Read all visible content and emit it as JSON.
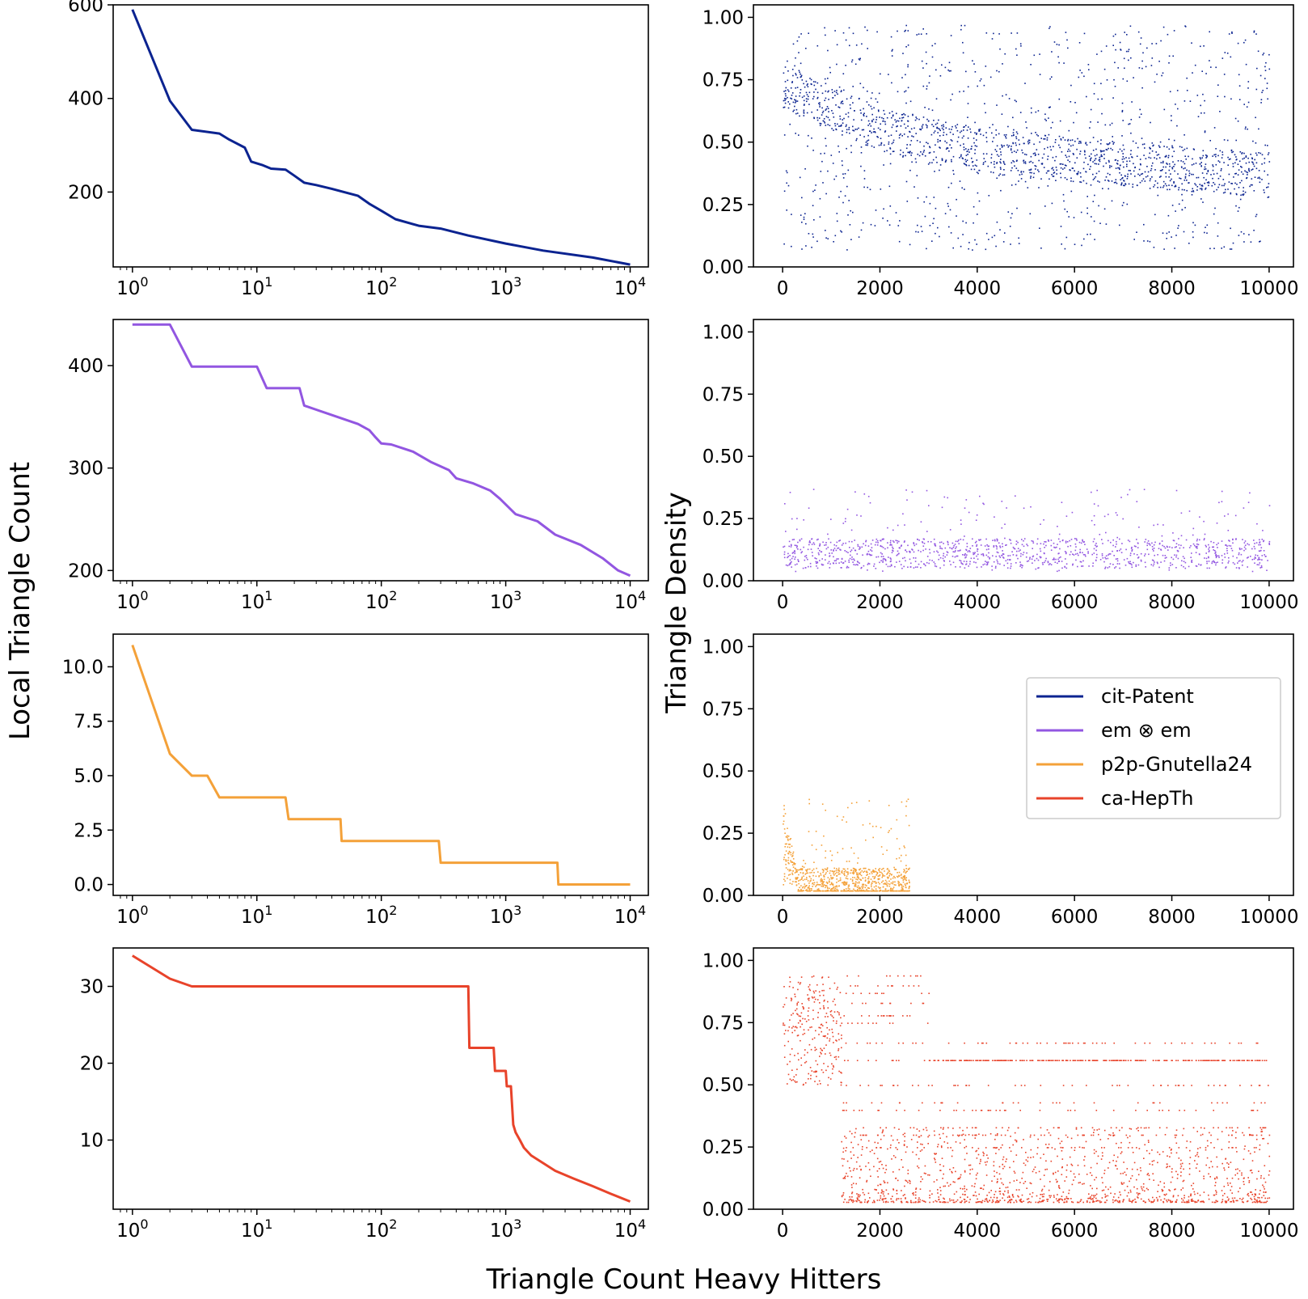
{
  "figure": {
    "xlabel": "Triangle Count Heavy Hitters",
    "ylabel_left": "Local Triangle Count",
    "ylabel_right": "Triangle Density"
  },
  "colors": {
    "cit-Patent": "#0b2390",
    "em ⊗ em": "#9256e1",
    "p2p-Gnutella24": "#f4a139",
    "ca-HepTh": "#e8432a"
  },
  "legend": {
    "placement": "right, third row density panel",
    "entries": [
      "cit-Patent",
      "em ⊗ em",
      "p2p-Gnutella24",
      "ca-HepTh"
    ]
  },
  "chart_data": [
    {
      "type": "line",
      "dataset": "cit-Patent",
      "xscale": "log",
      "xlim": [
        0.7,
        14000
      ],
      "ylim": [
        40,
        600
      ],
      "xticks": [
        1,
        10,
        100,
        1000,
        10000
      ],
      "yticks": [
        200,
        400,
        600
      ],
      "x": [
        1,
        2,
        3,
        5,
        6,
        8,
        9,
        11,
        13,
        17,
        20,
        24,
        30,
        40,
        65,
        80,
        100,
        130,
        200,
        300,
        500,
        1000,
        2000,
        5000,
        10000
      ],
      "y": [
        590,
        395,
        333,
        325,
        312,
        295,
        265,
        258,
        250,
        248,
        235,
        220,
        215,
        207,
        192,
        175,
        160,
        142,
        128,
        122,
        107,
        90,
        75,
        60,
        45
      ]
    },
    {
      "type": "scatter",
      "dataset": "cit-Patent",
      "xlim": [
        -600,
        10500
      ],
      "ylim": [
        0,
        1.05
      ],
      "xticks": [
        0,
        2000,
        4000,
        6000,
        8000,
        10000
      ],
      "yticks": [
        0.0,
        0.25,
        0.5,
        0.75,
        1.0
      ],
      "trend_x": [
        0,
        500,
        2000,
        4000,
        6000,
        8000,
        10000
      ],
      "trend_y": [
        0.72,
        0.68,
        0.55,
        0.47,
        0.43,
        0.4,
        0.37
      ],
      "x_range": [
        0,
        10000
      ],
      "y_range": [
        0.07,
        0.97
      ],
      "points": 2000
    },
    {
      "type": "line",
      "dataset": "em ⊗ em",
      "xscale": "log",
      "xlim": [
        0.7,
        14000
      ],
      "ylim": [
        190,
        445
      ],
      "xticks": [
        1,
        10,
        100,
        1000,
        10000
      ],
      "yticks": [
        200,
        300,
        400
      ],
      "x": [
        1,
        2,
        3,
        10,
        12,
        22,
        24,
        30,
        65,
        80,
        90,
        100,
        120,
        180,
        250,
        350,
        400,
        550,
        750,
        900,
        1200,
        1800,
        2500,
        4000,
        6000,
        8000,
        10000
      ],
      "y": [
        440,
        440,
        399,
        399,
        378,
        378,
        361,
        357,
        343,
        337,
        330,
        324,
        323,
        316,
        306,
        298,
        290,
        285,
        278,
        270,
        255,
        248,
        235,
        225,
        212,
        200,
        195
      ]
    },
    {
      "type": "scatter",
      "dataset": "em ⊗ em",
      "xlim": [
        -600,
        10500
      ],
      "ylim": [
        0,
        1.05
      ],
      "xticks": [
        0,
        2000,
        4000,
        6000,
        8000,
        10000
      ],
      "yticks": [
        0.0,
        0.25,
        0.5,
        0.75,
        1.0
      ],
      "x_range": [
        0,
        10000
      ],
      "y_range": [
        0.03,
        0.37
      ],
      "y_center": 0.1,
      "points": 1200
    },
    {
      "type": "line",
      "dataset": "p2p-Gnutella24",
      "xscale": "log",
      "xlim": [
        0.7,
        14000
      ],
      "ylim": [
        -0.5,
        11.5
      ],
      "xticks": [
        1,
        10,
        100,
        1000,
        10000
      ],
      "yticks": [
        0.0,
        2.5,
        5.0,
        7.5,
        10.0
      ],
      "x": [
        1,
        2,
        3,
        4,
        5,
        17,
        18,
        47,
        48,
        290,
        300,
        2600,
        2650,
        10000
      ],
      "y": [
        11,
        6,
        5,
        5,
        4,
        4,
        3,
        3,
        2,
        2,
        1,
        1,
        0,
        0
      ]
    },
    {
      "type": "scatter",
      "dataset": "p2p-Gnutella24",
      "xlim": [
        -600,
        10500
      ],
      "ylim": [
        0,
        1.05
      ],
      "xticks": [
        0,
        2000,
        4000,
        6000,
        8000,
        10000
      ],
      "yticks": [
        0.0,
        0.25,
        0.5,
        0.75,
        1.0
      ],
      "x_range": [
        0,
        2600
      ],
      "y_range": [
        0.02,
        0.4
      ],
      "y_center": 0.04,
      "points": 900
    },
    {
      "type": "line",
      "dataset": "ca-HepTh",
      "xscale": "log",
      "xlim": [
        0.7,
        14000
      ],
      "ylim": [
        1,
        35
      ],
      "xticks": [
        1,
        10,
        100,
        1000,
        10000
      ],
      "yticks": [
        10,
        20,
        30
      ],
      "x": [
        1,
        2,
        3,
        500,
        510,
        800,
        820,
        1000,
        1020,
        1100,
        1150,
        1200,
        1300,
        1400,
        1600,
        2000,
        2500,
        3500,
        5000,
        7000,
        10000
      ],
      "y": [
        34,
        31,
        30,
        30,
        22,
        22,
        19,
        19,
        17,
        17,
        12,
        11,
        10,
        9,
        8,
        7,
        6,
        5,
        4,
        3,
        2
      ]
    },
    {
      "type": "scatter",
      "dataset": "ca-HepTh",
      "xlim": [
        -600,
        10500
      ],
      "ylim": [
        0,
        1.05
      ],
      "xticks": [
        0,
        2000,
        4000,
        6000,
        8000,
        10000
      ],
      "yticks": [
        0.0,
        0.25,
        0.5,
        0.75,
        1.0
      ],
      "x_range": [
        0,
        10000
      ],
      "y_range": [
        0.03,
        0.94
      ],
      "band_levels": [
        0.94,
        0.9,
        0.87,
        0.83,
        0.78,
        0.75,
        0.67,
        0.6,
        0.5,
        0.43,
        0.4,
        0.33,
        0.3,
        0.25
      ],
      "points": 2200
    }
  ]
}
